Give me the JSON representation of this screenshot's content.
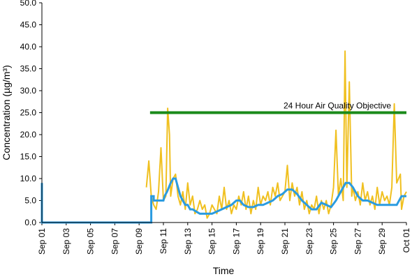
{
  "chart_data": {
    "type": "line",
    "xlabel": "Time",
    "ylabel": "Concentration (µg/m³)",
    "x_ticks": [
      "Sep 01",
      "Sep 03",
      "Sep 05",
      "Sep 07",
      "Sep 09",
      "Sep 11",
      "Sep 13",
      "Sep 15",
      "Sep 17",
      "Sep 19",
      "Sep 21",
      "Sep 23",
      "Sep 25",
      "Sep 27",
      "Sep 29",
      "Oct 01"
    ],
    "y_ticks": [
      "0.0",
      "5.0",
      "10.0",
      "15.0",
      "20.0",
      "25.0",
      "30.0",
      "35.0",
      "40.0",
      "45.0",
      "50.0"
    ],
    "ylim": [
      0,
      50
    ],
    "xlim": [
      "Sep 01",
      "Oct 01"
    ],
    "grid": false,
    "colors": {
      "hourly": "#f0c020",
      "rolling_24h": "#2a9be0",
      "objective": "#1a8a1a"
    },
    "annotation": {
      "text": "24 Hour Air Quality Objective",
      "value": 25,
      "x_start": "Sep 09.9",
      "x_end": "Oct 01"
    },
    "series": [
      {
        "values_x_day": [
          9.6,
          9.8,
          10.0,
          10.2,
          10.4,
          10.6,
          10.8,
          11.0,
          11.2,
          11.35,
          11.5,
          11.6,
          11.8,
          12.0,
          12.2,
          12.4,
          12.6,
          12.8,
          13.0,
          13.2,
          13.4,
          13.6,
          13.8,
          14.0,
          14.2,
          14.4,
          14.6,
          14.8,
          15.0,
          15.2,
          15.4,
          15.6,
          15.8,
          16.0,
          16.2,
          16.4,
          16.6,
          16.8,
          17.0,
          17.2,
          17.4,
          17.6,
          17.8,
          18.0,
          18.2,
          18.4,
          18.6,
          18.8,
          19.0,
          19.2,
          19.4,
          19.6,
          19.8,
          20.0,
          20.2,
          20.4,
          20.6,
          20.8,
          21.0,
          21.2,
          21.4,
          21.6,
          21.8,
          22.0,
          22.2,
          22.4,
          22.6,
          22.8,
          23.0,
          23.2,
          23.4,
          23.6,
          23.8,
          24.0,
          24.2,
          24.4,
          24.6,
          24.8,
          25.0,
          25.2,
          25.4,
          25.6,
          25.8,
          25.95,
          26.1,
          26.3,
          26.5,
          26.6,
          26.8,
          27.0,
          27.2,
          27.4,
          27.6,
          27.8,
          28.0,
          28.2,
          28.4,
          28.6,
          28.8,
          29.0,
          29.2,
          29.4,
          29.6,
          29.8,
          30.0,
          30.2,
          30.5,
          30.6,
          30.8,
          31.0
        ],
        "values": [
          8,
          14,
          6,
          4,
          3,
          7,
          17,
          5,
          6,
          26,
          20,
          6,
          10,
          11,
          6,
          4,
          7,
          3,
          9,
          4,
          6,
          2,
          3,
          5,
          3,
          4,
          1,
          2,
          4,
          3,
          2,
          6,
          3,
          8,
          3,
          5,
          2,
          4,
          3,
          6,
          4,
          7,
          3,
          6,
          2,
          5,
          3,
          8,
          4,
          6,
          5,
          7,
          4,
          8,
          6,
          9,
          5,
          6,
          7,
          13,
          5,
          9,
          6,
          8,
          4,
          7,
          3,
          5,
          2,
          4,
          3,
          6,
          2,
          5,
          3,
          5,
          2,
          4,
          8,
          21,
          6,
          10,
          5,
          39,
          8,
          32,
          6,
          8,
          5,
          7,
          4,
          9,
          5,
          7,
          4,
          6,
          3,
          8,
          4,
          7,
          5,
          6,
          4,
          8,
          27,
          9,
          11,
          3,
          6,
          7
        ]
      },
      {
        "values_x_day": [
          1.0,
          1.0,
          10.0,
          10.0,
          10.2,
          10.2,
          10.5,
          11.0,
          11.1,
          11.3,
          11.6,
          11.8,
          12.0,
          12.2,
          12.4,
          12.6,
          12.8,
          13.0,
          13.2,
          13.4,
          13.7,
          14.0,
          14.3,
          14.6,
          15.0,
          15.4,
          15.8,
          16.2,
          16.6,
          17.0,
          17.3,
          17.6,
          18.0,
          18.4,
          18.8,
          19.2,
          19.6,
          20.0,
          20.4,
          20.8,
          21.2,
          21.6,
          22.0,
          22.4,
          22.8,
          23.2,
          23.6,
          24.0,
          24.4,
          24.8,
          25.2,
          25.6,
          26.0,
          26.3,
          26.6,
          27.0,
          27.4,
          27.8,
          28.2,
          28.6,
          29.0,
          29.4,
          29.8,
          30.2,
          30.6,
          31.0
        ],
        "values": [
          9,
          0,
          0,
          6,
          6,
          5,
          5,
          5,
          6,
          7,
          9,
          10,
          10,
          8,
          6,
          5,
          4,
          4,
          3,
          3,
          2.5,
          2,
          2,
          2,
          2,
          2.5,
          3,
          3.5,
          4,
          5,
          5,
          4,
          3.5,
          3.5,
          4,
          4,
          4.5,
          5,
          6,
          6.5,
          7.5,
          7.5,
          6.5,
          5,
          4,
          3,
          3,
          4.5,
          4,
          3.5,
          5,
          7,
          9,
          9,
          8,
          6,
          5,
          5,
          4.5,
          4,
          4,
          4,
          4,
          4,
          6,
          6
        ]
      }
    ]
  }
}
